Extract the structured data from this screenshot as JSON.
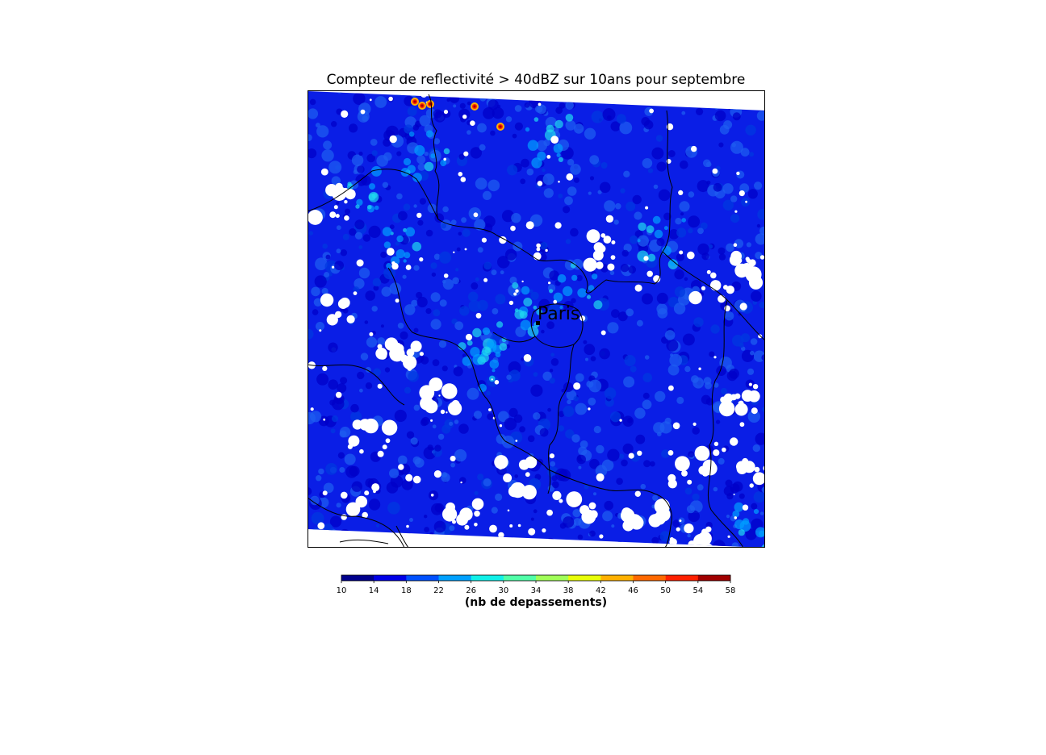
{
  "map": {
    "title": "Compteur de reflectivité > 40dBZ sur 10ans pour septembre",
    "city_label": "Paris",
    "colors": {
      "background": "#0a1ee6",
      "missing": "#ffffff",
      "borders": "#000000"
    }
  },
  "colorbar": {
    "label": "(nb de depassements)",
    "ticks": [
      "10",
      "14",
      "18",
      "22",
      "26",
      "30",
      "34",
      "38",
      "42",
      "46",
      "50",
      "54",
      "58"
    ],
    "colors": [
      "#00008c",
      "#0000e6",
      "#0050ff",
      "#00a0ff",
      "#10f0e8",
      "#50ffa8",
      "#a0ff58",
      "#e8ff08",
      "#ffb000",
      "#ff6800",
      "#ff2000",
      "#a00000"
    ]
  }
}
